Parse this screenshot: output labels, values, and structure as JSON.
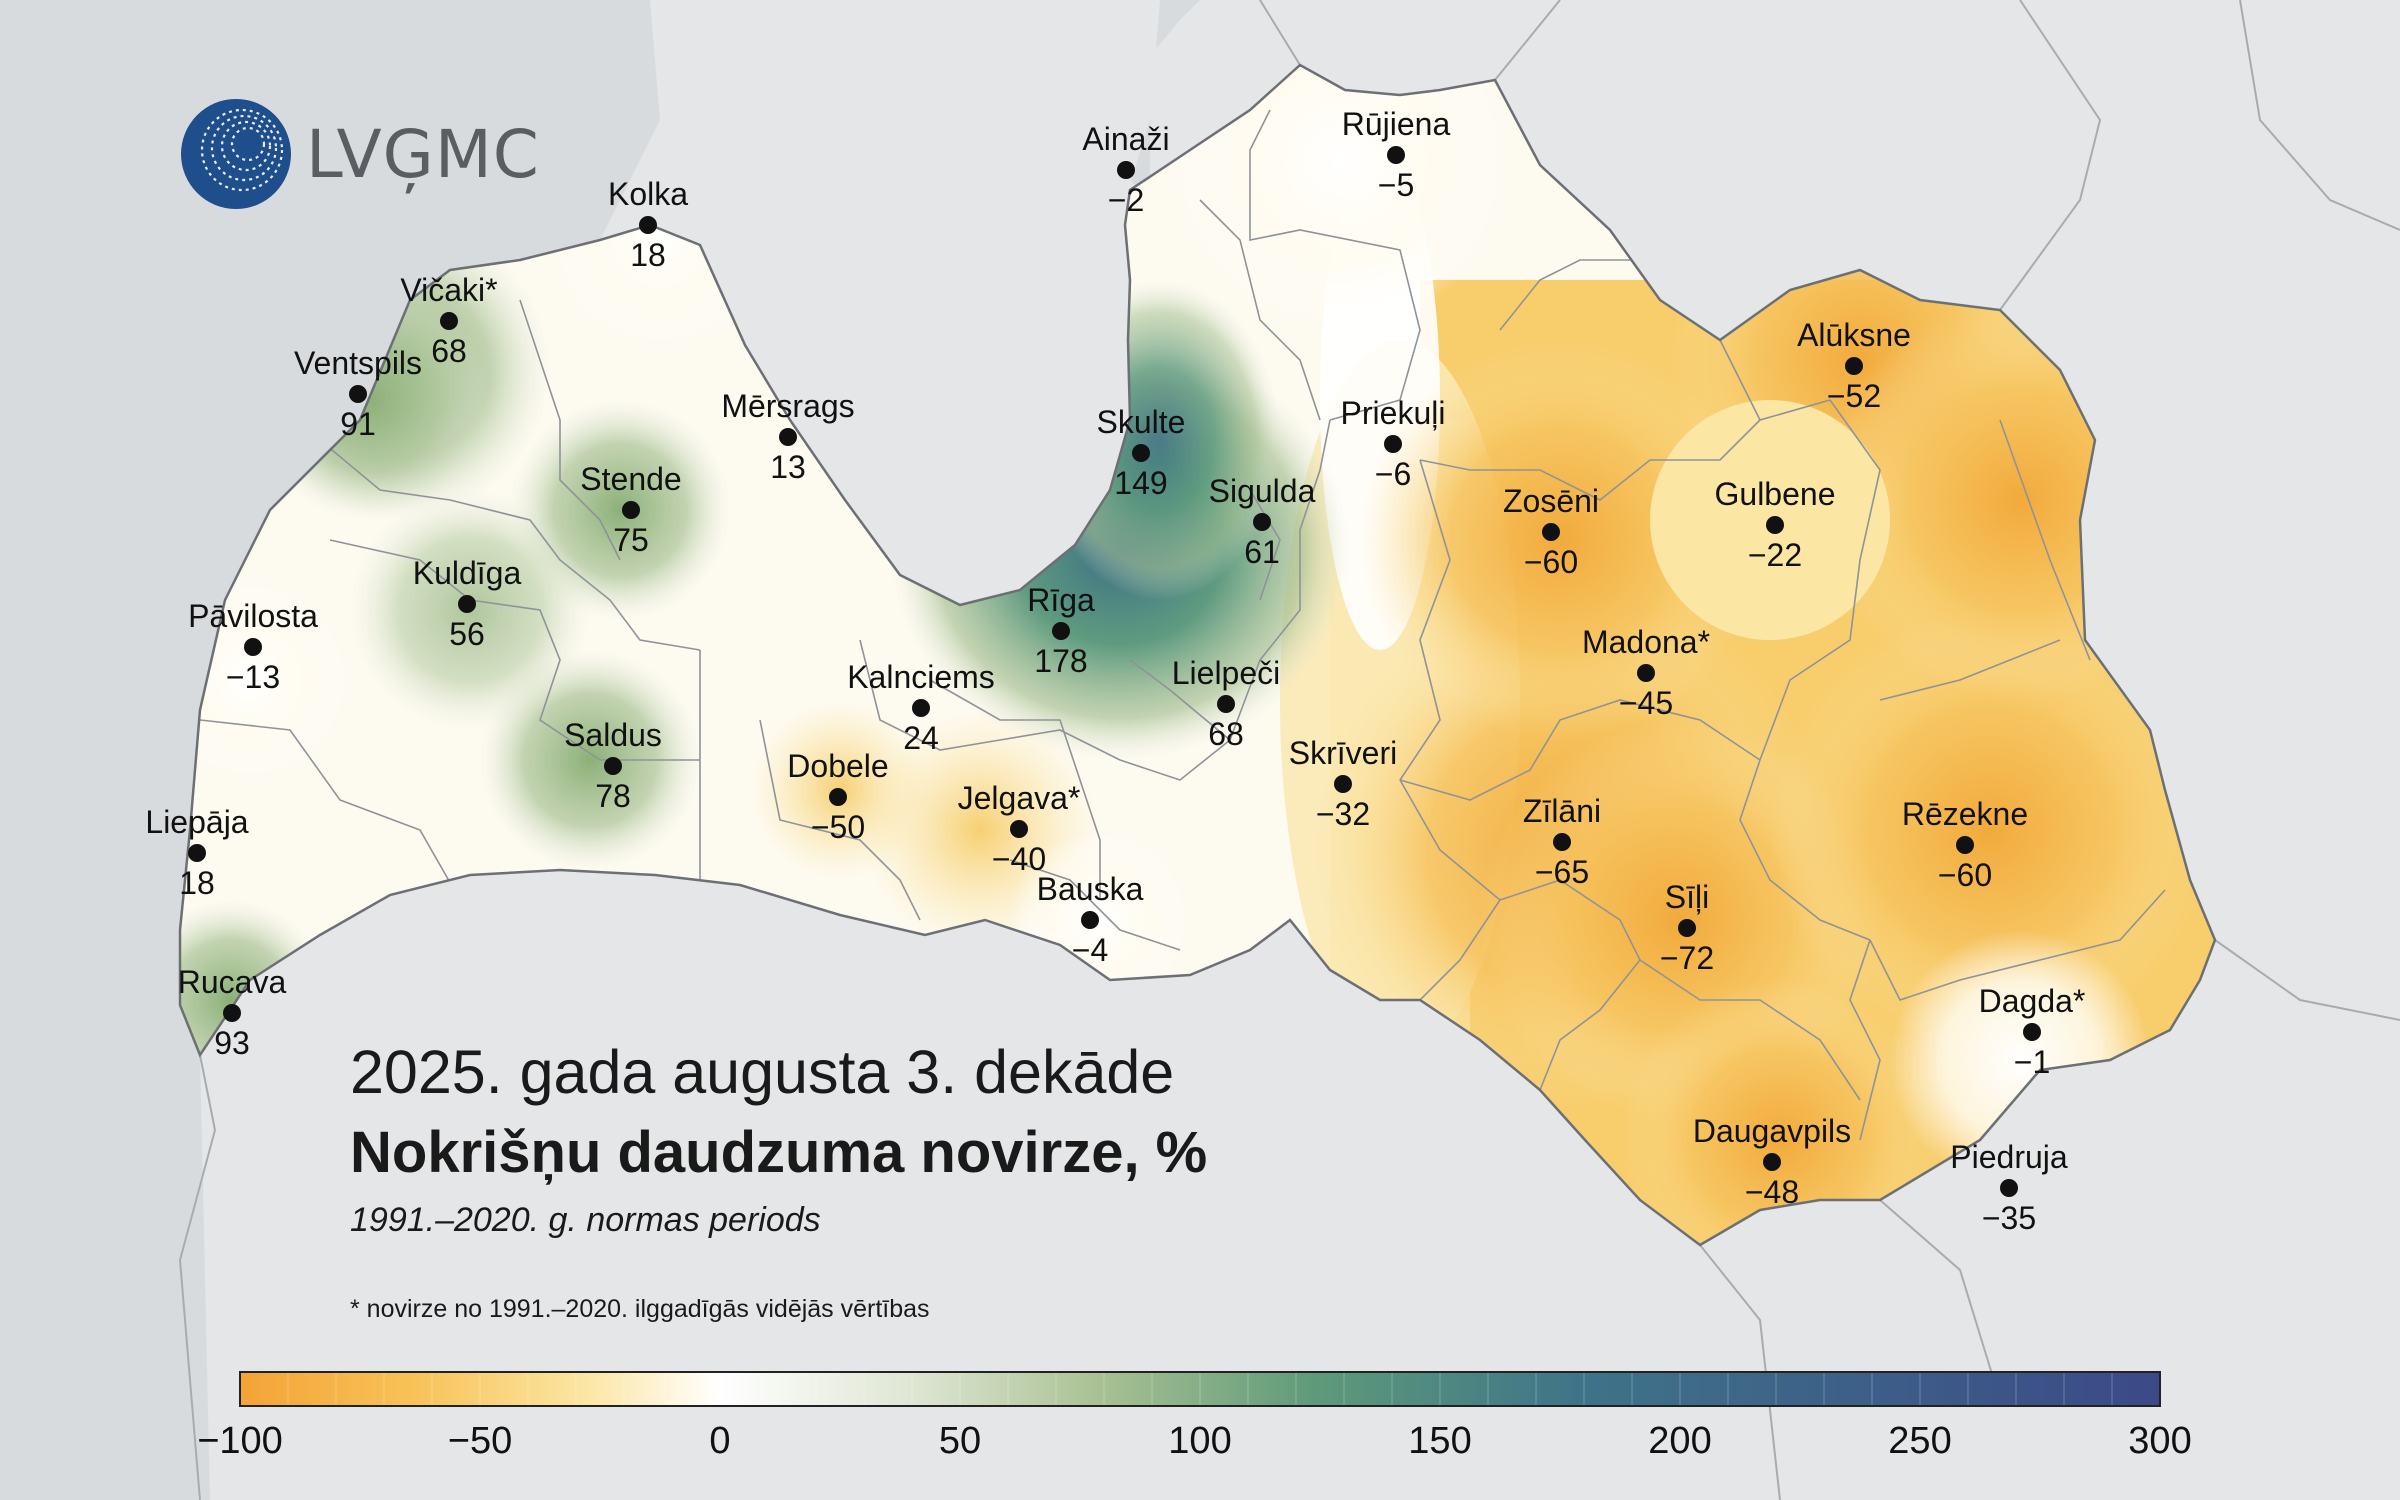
{
  "logo": {
    "text": "LVĢMC",
    "icon": "lvgmc-globe-icon"
  },
  "title": {
    "main": "2025. gada augusta 3. dekāde",
    "sub": "Nokrišņu daudzuma novirze, %",
    "period": "1991.–2020. g. normas periods"
  },
  "footnote": "* novirze no 1991.–2020. ilggadīgās vidējās vērtības",
  "legend": {
    "ticks": [
      "−100",
      "−50",
      "0",
      "50",
      "100",
      "150",
      "200",
      "250",
      "300"
    ],
    "range": [
      -100,
      300
    ],
    "colors": [
      "#f4a336",
      "#f8c257",
      "#fbe6a4",
      "#ffffff",
      "#dfe6d3",
      "#a7c092",
      "#5e9a7a",
      "#3e7388",
      "#3c4988"
    ]
  },
  "stations": [
    {
      "name": "Kolka",
      "value": "18"
    },
    {
      "name": "Vičaki*",
      "value": "68"
    },
    {
      "name": "Ventspils",
      "value": "91"
    },
    {
      "name": "Mērsrags",
      "value": "13"
    },
    {
      "name": "Stende",
      "value": "75"
    },
    {
      "name": "Kuldīga",
      "value": "56"
    },
    {
      "name": "Pāvilosta",
      "value": "−13"
    },
    {
      "name": "Saldus",
      "value": "78"
    },
    {
      "name": "Liepāja",
      "value": "18"
    },
    {
      "name": "Rucava",
      "value": "93"
    },
    {
      "name": "Ainaži",
      "value": "−2"
    },
    {
      "name": "Rūjiena",
      "value": "−5"
    },
    {
      "name": "Skulte",
      "value": "149"
    },
    {
      "name": "Sigulda",
      "value": "61"
    },
    {
      "name": "Rīga",
      "value": "178"
    },
    {
      "name": "Kalnciems",
      "value": "24"
    },
    {
      "name": "Lielpeči",
      "value": "68"
    },
    {
      "name": "Dobele",
      "value": "−50"
    },
    {
      "name": "Jelgava*",
      "value": "−40"
    },
    {
      "name": "Bauska",
      "value": "−4"
    },
    {
      "name": "Priekuļi",
      "value": "−6"
    },
    {
      "name": "Alūksne",
      "value": "−52"
    },
    {
      "name": "Zosēni",
      "value": "−60"
    },
    {
      "name": "Gulbene",
      "value": "−22"
    },
    {
      "name": "Madona*",
      "value": "−45"
    },
    {
      "name": "Skrīveri",
      "value": "−32"
    },
    {
      "name": "Zīlāni",
      "value": "−65"
    },
    {
      "name": "Rēzekne",
      "value": "−60"
    },
    {
      "name": "Sīļi",
      "value": "−72"
    },
    {
      "name": "Dagda*",
      "value": "−1"
    },
    {
      "name": "Daugavpils",
      "value": "−48"
    },
    {
      "name": "Piedruja",
      "value": "−35"
    }
  ]
}
